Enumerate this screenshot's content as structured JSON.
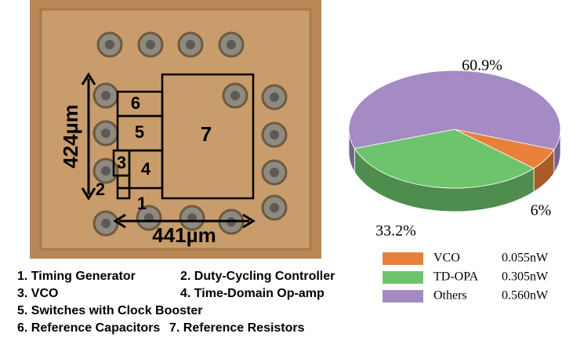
{
  "micrograph": {
    "blocks": [
      "1",
      "2",
      "3",
      "4",
      "5",
      "6",
      "7"
    ],
    "height_label": "424µm",
    "width_label": "441µm",
    "legend": [
      "1. Timing Generator",
      "2. Duty-Cycling Controller",
      "3. VCO",
      "4. Time-Domain Op-amp",
      "5. Switches with Clock Booster",
      "6. Reference Capacitors",
      "7. Reference Resistors"
    ]
  },
  "chart_data": {
    "type": "pie",
    "categories": [
      "VCO",
      "TD-OPA",
      "Others"
    ],
    "values": [
      6,
      33.2,
      60.9
    ],
    "value_labels": [
      "6%",
      "33.2%",
      "60.9%"
    ],
    "colors": [
      "#e8803a",
      "#6dc46d",
      "#a48bc4"
    ],
    "legend_values": [
      "0.055nW",
      "0.305nW",
      "0.560nW"
    ]
  }
}
